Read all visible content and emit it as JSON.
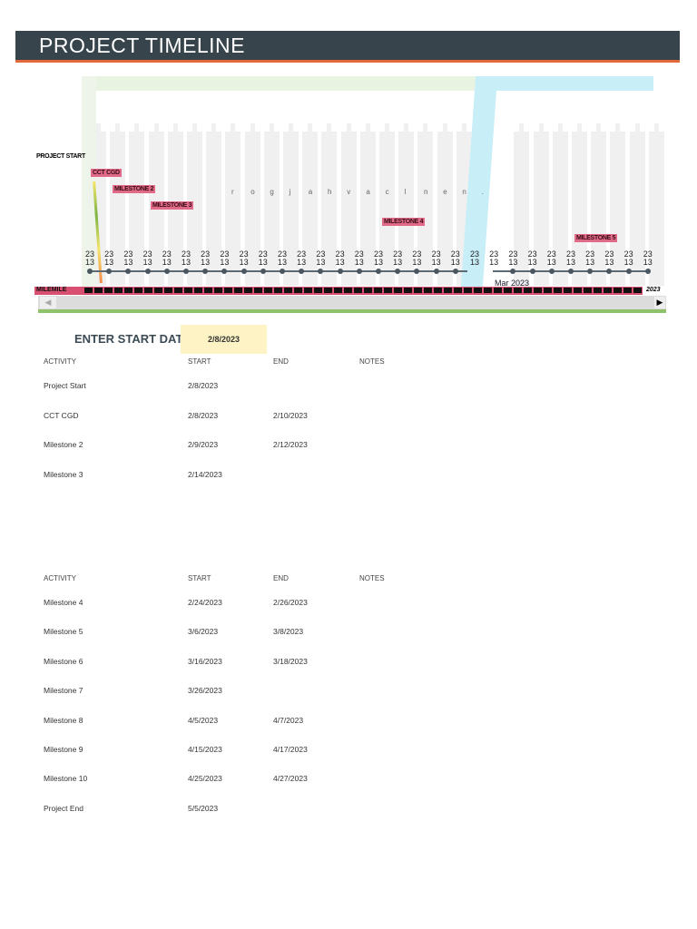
{
  "header": {
    "title": "PROJECT TIMELINE"
  },
  "colors": {
    "header_bg": "#37444c",
    "accent": "#e2673a",
    "milestone": "#e06a87",
    "start_date_bg": "#fdf3c4"
  },
  "chart": {
    "project_start_label": "PROJECT START",
    "milestones": [
      "CCT CGD",
      "MILESTONE 2",
      "MILESTONE 3",
      "MILESTONE 4",
      "MILESTONE 5"
    ],
    "tick_label_top": "23",
    "tick_label_bottom": "13",
    "tick_count": 30,
    "scatter_letters": [
      "r",
      "o",
      "g",
      "j",
      "a",
      "h",
      "v",
      "a",
      "c",
      "l",
      "n",
      "e",
      "n",
      "."
    ],
    "month_label": "Mar 2023",
    "bottom_strip_left": "MILEMILE",
    "bottom_strip_right": "2023"
  },
  "start_date": {
    "label": "ENTER START DATE:",
    "value": "2/8/2023"
  },
  "table1": {
    "headers": [
      "ACTIVITY",
      "START",
      "END",
      "NOTES"
    ],
    "rows": [
      {
        "activity": "Project Start",
        "start": "2/8/2023",
        "end": ""
      },
      {
        "activity": "CCT CGD",
        "start": "2/8/2023",
        "end": "2/10/2023"
      },
      {
        "activity": "Milestone 2",
        "start": "2/9/2023",
        "end": "2/12/2023"
      },
      {
        "activity": "Milestone 3",
        "start": "2/14/2023",
        "end": ""
      }
    ]
  },
  "table2": {
    "headers": [
      "ACTIVITY",
      "START",
      "END",
      "NOTES"
    ],
    "rows": [
      {
        "activity": "Milestone 4",
        "start": "2/24/2023",
        "end": "2/26/2023"
      },
      {
        "activity": "Milestone 5",
        "start": "3/6/2023",
        "end": "3/8/2023"
      },
      {
        "activity": "Milestone 6",
        "start": "3/16/2023",
        "end": "3/18/2023"
      },
      {
        "activity": "Milestone 7",
        "start": "3/26/2023",
        "end": ""
      },
      {
        "activity": "Milestone 8",
        "start": "4/5/2023",
        "end": "4/7/2023"
      },
      {
        "activity": "Milestone 9",
        "start": "4/15/2023",
        "end": "4/17/2023"
      },
      {
        "activity": "Milestone 10",
        "start": "4/25/2023",
        "end": "4/27/2023"
      },
      {
        "activity": "Project End",
        "start": "5/5/2023",
        "end": ""
      }
    ]
  }
}
